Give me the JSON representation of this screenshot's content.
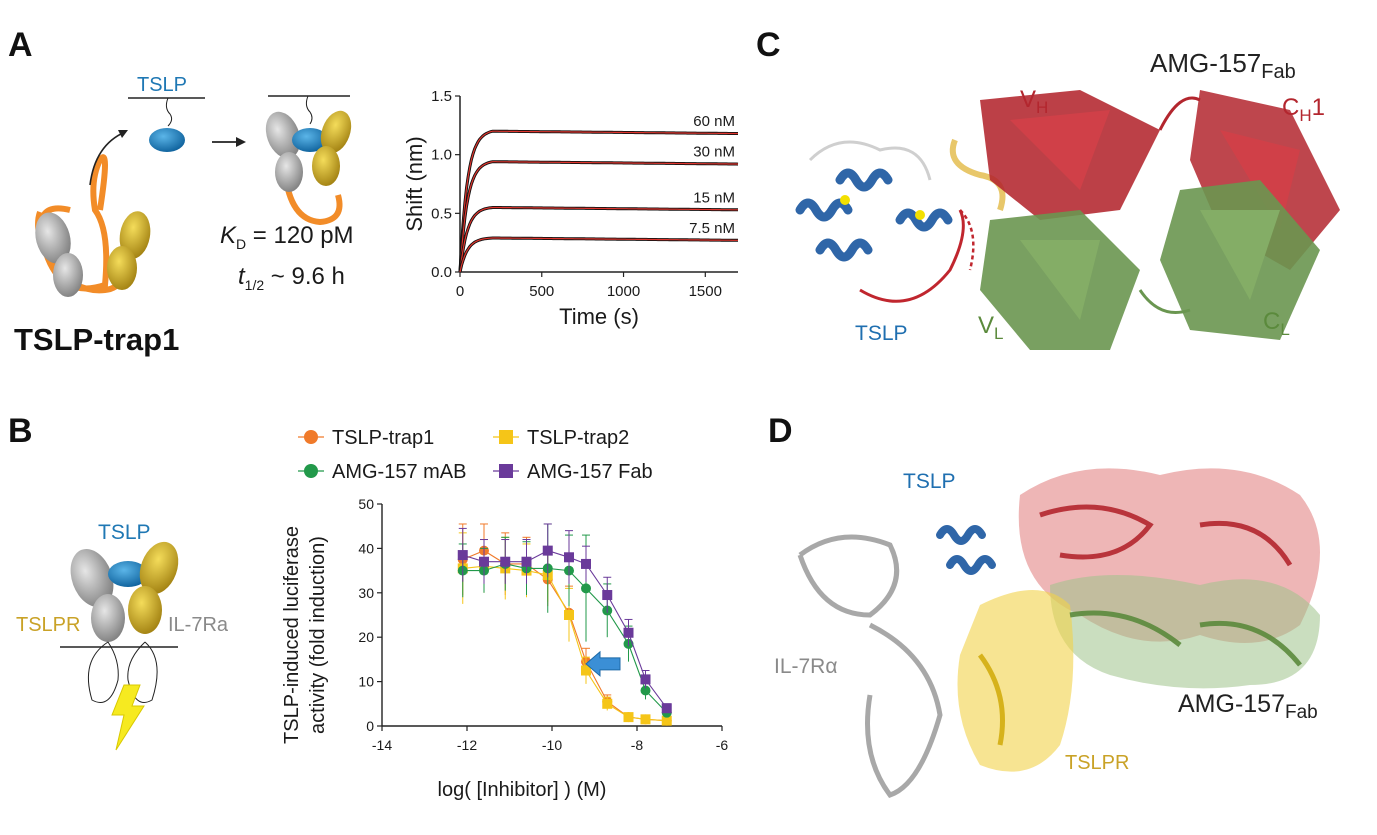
{
  "panels": {
    "A": {
      "letter": "A",
      "tslp_label": "TSLP",
      "construct_name": "TSLP-trap1",
      "kd_symbol": "K",
      "kd_sub": "D",
      "kd_value": " = 120 pM",
      "thalf_symbol": "t",
      "thalf_sub": "1/2",
      "thalf_value": " ~ 9.6 h"
    },
    "B": {
      "letter": "B",
      "tslp_label": "TSLP",
      "receptor_left": "TSLPR",
      "receptor_right": "IL-7Ra"
    },
    "C": {
      "letter": "C",
      "fab_title": "AMG-157",
      "fab_title_sub": "Fab",
      "vh": "V",
      "vh_sub": "H",
      "ch1": "C",
      "ch1_sub": "H",
      "ch1_tail": "1",
      "vl": "V",
      "vl_sub": "L",
      "cl": "C",
      "cl_sub": "L",
      "tslp": "TSLP"
    },
    "D": {
      "letter": "D",
      "tslp": "TSLP",
      "il7": "IL-7Rα",
      "fab": "AMG-157",
      "fab_sub": "Fab",
      "tslpr": "TSLPR"
    }
  },
  "colors": {
    "tslp_blue": "#1f78b4",
    "red": "#b5262e",
    "green": "#5b8a3c",
    "gold": "#c9a227",
    "orange": "#f08a24",
    "grey": "#9a9a9a"
  },
  "chart_data": [
    {
      "type": "line",
      "ylabel": "Shift (nm)",
      "xlabel": "Time (s)",
      "xlim": [
        0,
        1700
      ],
      "ylim": [
        0,
        1.5
      ],
      "xticks": [
        0,
        500,
        1000,
        1500
      ],
      "yticks": [
        0.0,
        0.5,
        1.0,
        1.5
      ],
      "ytick_labels": [
        "0.0",
        "0.5",
        "1.0",
        "1.5"
      ],
      "association_end": 200,
      "series": [
        {
          "name": "60 nM",
          "plateau": 1.2,
          "end": 1.18
        },
        {
          "name": "30 nM",
          "plateau": 0.94,
          "end": 0.92
        },
        {
          "name": "15 nM",
          "plateau": 0.55,
          "end": 0.53
        },
        {
          "name": "7.5 nM",
          "plateau": 0.29,
          "end": 0.27
        }
      ],
      "fit_color": "#e0342c",
      "data_color": "#111111"
    },
    {
      "type": "scatter",
      "ylabel_line1": "TSLP-induced luciferase",
      "ylabel_line2": "activity (fold induction)",
      "xlabel": "log( [Inhibitor] ) (M)",
      "xlim": [
        -14,
        -6
      ],
      "ylim": [
        0,
        50
      ],
      "xticks": [
        -14,
        -12,
        -10,
        -8,
        -6
      ],
      "yticks": [
        0,
        10,
        20,
        30,
        40,
        50
      ],
      "x": [
        -12.1,
        -11.6,
        -11.1,
        -10.6,
        -10.1,
        -9.6,
        -9.2,
        -8.7,
        -8.2,
        -7.8,
        -7.3
      ],
      "series": [
        {
          "name": "TSLP-trap1",
          "color": "#f07a2a",
          "marker": "circle",
          "values": [
            37.5,
            39.5,
            36.5,
            36.5,
            33,
            25.5,
            14.5,
            5.5,
            2,
            1.5,
            1.2
          ],
          "err": [
            8,
            6,
            7,
            6,
            6,
            6,
            3,
            1.5,
            0.8,
            0.5,
            0.5
          ]
        },
        {
          "name": "TSLP-trap2",
          "color": "#f5c518",
          "marker": "square",
          "values": [
            35.5,
            36,
            35.5,
            35,
            34,
            25,
            12.5,
            5,
            2,
            1.5,
            1.2
          ],
          "err": [
            8,
            6,
            7,
            6,
            6,
            6,
            3,
            1.5,
            0.8,
            0.5,
            0.5
          ]
        },
        {
          "name": "AMG-157 mAB",
          "color": "#22994a",
          "marker": "circle",
          "values": [
            35,
            35,
            36.5,
            35.5,
            35.5,
            35,
            31,
            26,
            18.5,
            8,
            3
          ],
          "err": [
            6,
            5,
            6,
            6,
            10,
            8,
            12,
            6,
            4,
            2,
            1
          ]
        },
        {
          "name": "AMG-157 Fab",
          "color": "#6a3a9a",
          "marker": "square",
          "values": [
            38.5,
            37,
            37,
            37,
            39.5,
            38,
            36.5,
            29.5,
            21,
            10.5,
            4
          ],
          "err": [
            6,
            5,
            5,
            5,
            6,
            6,
            4,
            4,
            3,
            2,
            1
          ]
        }
      ]
    }
  ]
}
